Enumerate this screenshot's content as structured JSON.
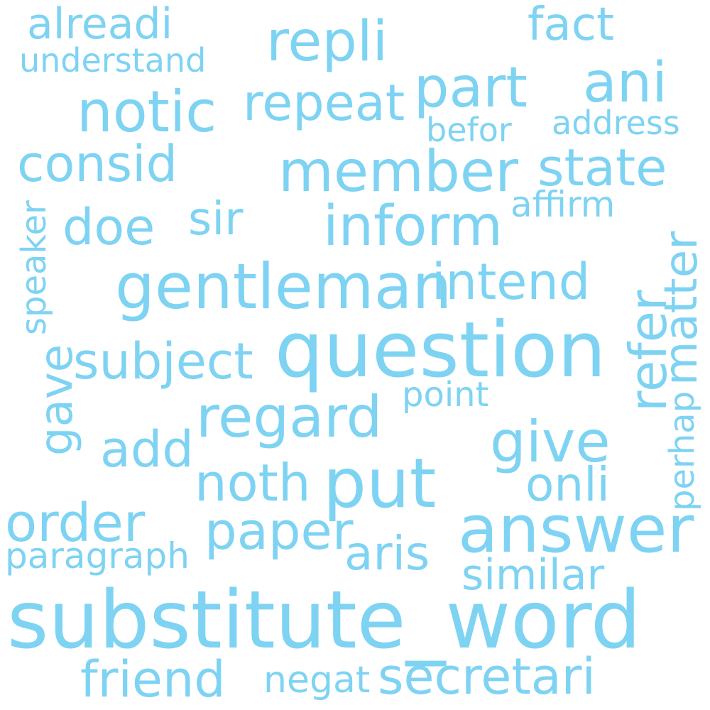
{
  "colors": {
    "background": "#ffffff",
    "text": "#7ed3f3"
  },
  "words": {
    "alreadi": "alreadi",
    "repli": "repli",
    "fact": "fact",
    "understand": "understand",
    "part": "part",
    "ani": "ani",
    "notic": "notic",
    "repeat": "repeat",
    "befor": "befor",
    "address": "address",
    "consid": "consid",
    "member": "member",
    "state": "state",
    "speaker": "speaker",
    "affirm": "affirm",
    "doe": "doe",
    "sir": "sir",
    "inform": "inform",
    "gentleman": "gentleman",
    "intend": "intend",
    "refer": "refer",
    "matter": "matter",
    "question": "question",
    "gave": "gave",
    "subject": "subject",
    "point": "point",
    "regard": "regard",
    "perhap": "perhap",
    "add": "add",
    "give": "give",
    "noth": "noth",
    "put": "put",
    "onli": "onli",
    "order": "order",
    "paper": "paper",
    "answer": "answer",
    "paragraph": "paragraph",
    "aris": "aris",
    "similar": "similar",
    "substitute_word": "substitute_word",
    "friend": "friend",
    "negat": "negat",
    "secretari": "secretari"
  }
}
